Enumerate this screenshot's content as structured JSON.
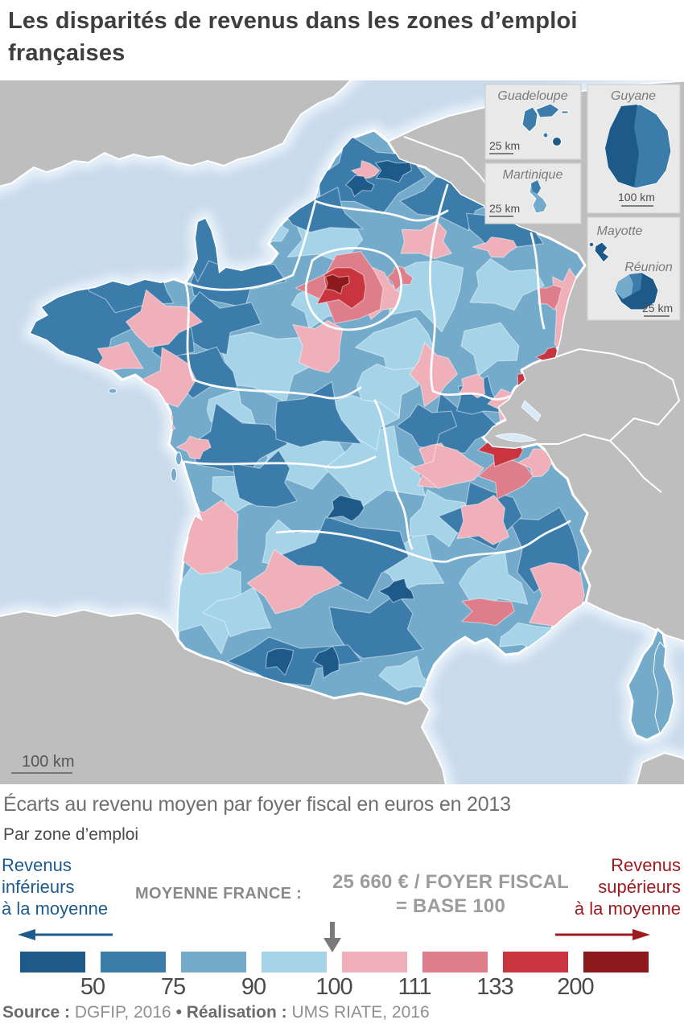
{
  "title": "Les disparités de revenus dans les zones d’emploi françaises",
  "subtitle": "Écarts au revenu moyen par foyer fiscal en euros en 2013",
  "subtitle2": "Par zone d’emploi",
  "legend": {
    "left_lines": [
      "Revenus",
      "inférieurs",
      "à la moyenne"
    ],
    "right_lines": [
      "Revenus",
      "supérieurs",
      "à la moyenne"
    ],
    "average_label": "MOYENNE FRANCE :",
    "average_value_line1": "25 660 € / FOYER FISCAL",
    "average_value_line2": "= BASE 100"
  },
  "source": {
    "source_label": "Source :",
    "source_value": " DGFIP, 2016 ",
    "separator": "• ",
    "realisation_label": "Réalisation :",
    "realisation_value": " UMS RIATE, 2016"
  },
  "map": {
    "scale_bar": "100 km",
    "insets": {
      "guadeloupe": {
        "label": "Guadeloupe",
        "scale": "25 km"
      },
      "martinique": {
        "label": "Martinique",
        "scale": "25 km"
      },
      "guyane": {
        "label": "Guyane",
        "scale": "100 km"
      },
      "mayotte": {
        "label": "Mayotte"
      },
      "reunion": {
        "label": "Réunion"
      },
      "mayotte_reunion_scale": "25 km"
    },
    "colors": {
      "sea": "#C9DAEB",
      "foreign_land": "#BEBEBE",
      "lake": "#D8EAF8",
      "coast_glow": "#E9F2FA"
    }
  },
  "chart_data": {
    "type": "choropleth_map",
    "title": "Les disparités de revenus dans les zones d’emploi françaises",
    "indicator": "Écarts au revenu moyen par foyer fiscal en euros en 2013",
    "unit_area": "Par zone d’emploi",
    "reference": "Moyenne France : 25 660 € / foyer fiscal = base 100",
    "class_breaks": [
      50,
      75,
      90,
      100,
      111,
      133,
      200
    ],
    "palette": [
      "#1D5A89",
      "#3B7CAB",
      "#74AACA",
      "#A5D3E8",
      "#F0B0BA",
      "#DE7E8A",
      "#C8353F",
      "#8C191C"
    ],
    "legend_low_label": "Revenus inférieurs à la moyenne",
    "legend_high_label": "Revenus supérieurs à la moyenne",
    "accent_blue_text": "#1E5B8D",
    "accent_red_text": "#9E1B20",
    "insets": [
      "Guadeloupe",
      "Martinique",
      "Guyane",
      "Mayotte",
      "Réunion"
    ],
    "source": "DGFIP, 2016",
    "realisation": "UMS RIATE, 2016"
  }
}
